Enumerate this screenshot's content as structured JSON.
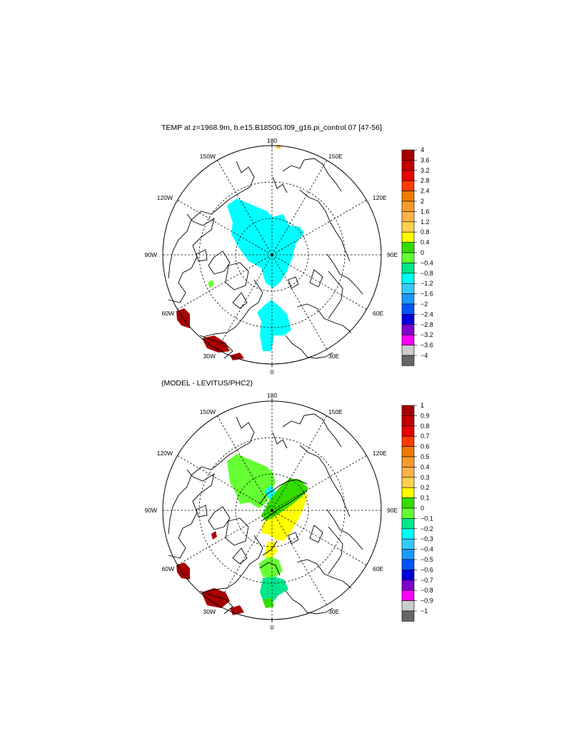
{
  "maps": [
    {
      "title": "TEMP at z=1968.9m, b.e15.B1850G.f09_g16.pi_control.07 [47-56]",
      "lon_labels": [
        "180",
        "150E",
        "120E",
        "90E",
        "60E",
        "30E",
        "0",
        "30W",
        "60W",
        "90W",
        "120W",
        "150W"
      ],
      "colorbar": {
        "labels": [
          "4",
          "3.6",
          "3.2",
          "2.8",
          "2.4",
          "2",
          "1.6",
          "1.2",
          "0.8",
          "0.4",
          "0",
          "−0.4",
          "−0.8",
          "−1.2",
          "−1.6",
          "−2",
          "−2.4",
          "−2.8",
          "−3.2",
          "−3.6",
          "−4"
        ],
        "colors": [
          "#a80000",
          "#c40000",
          "#e80000",
          "#ff3a00",
          "#ee7a00",
          "#f59b2a",
          "#ffb34c",
          "#ffd24d",
          "#ffff00",
          "#33dd00",
          "#66ff33",
          "#00e68c",
          "#00ffff",
          "#33ccff",
          "#1a99ff",
          "#0055ff",
          "#0000dd",
          "#8000cc",
          "#ff00ff",
          "#cccccc",
          "#666666"
        ]
      }
    },
    {
      "title": "(MODEL - LEVITUS/PHC2)",
      "lon_labels": [
        "180",
        "150E",
        "120E",
        "90E",
        "60E",
        "30E",
        "0",
        "30W",
        "60W",
        "90W",
        "120W",
        "150W"
      ],
      "colorbar": {
        "labels": [
          "1",
          "0.9",
          "0.8",
          "0.7",
          "0.6",
          "0.5",
          "0.4",
          "0.3",
          "0.2",
          "0.1",
          "0",
          "−0.1",
          "−0.2",
          "−0.3",
          "−0.4",
          "−0.5",
          "−0.6",
          "−0.7",
          "−0.8",
          "−0.9",
          "−1"
        ],
        "colors": [
          "#a80000",
          "#c40000",
          "#e80000",
          "#ff3a00",
          "#ee7a00",
          "#f59b2a",
          "#ffb34c",
          "#ffd24d",
          "#ffff00",
          "#33dd00",
          "#66ff33",
          "#00e68c",
          "#00ffff",
          "#33ccff",
          "#1a99ff",
          "#0055ff",
          "#0000dd",
          "#8000cc",
          "#ff00ff",
          "#cccccc",
          "#666666"
        ]
      }
    }
  ]
}
